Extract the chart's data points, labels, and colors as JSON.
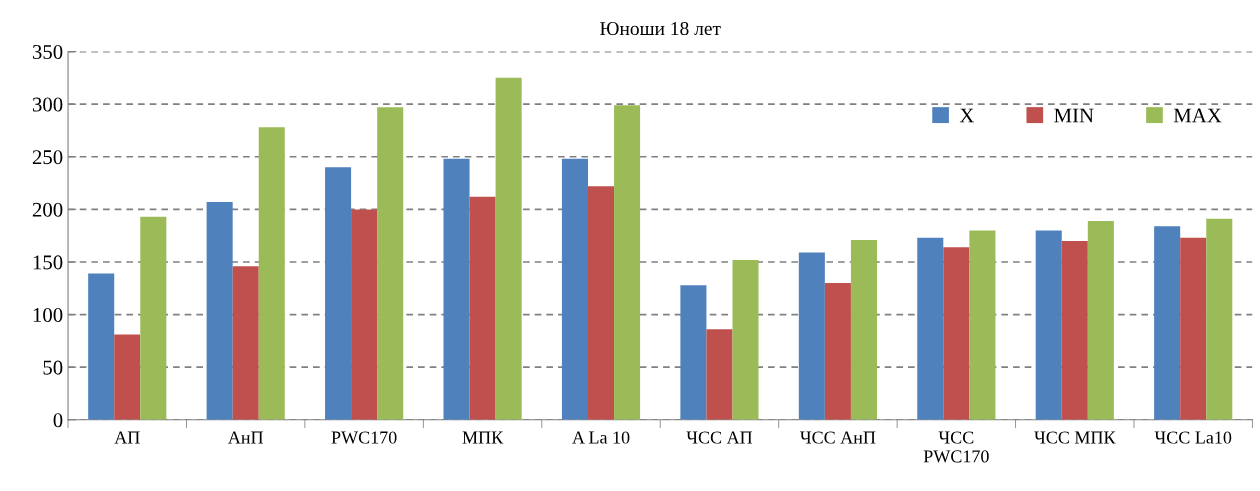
{
  "chart_data": {
    "type": "bar",
    "title": "Юноши 18 лет",
    "categories": [
      "АП",
      "АнП",
      "PWC170",
      "МПК",
      "A La 10",
      "ЧСС АП",
      "ЧСС АнП",
      "ЧСС PWC170",
      "ЧСС МПК",
      "ЧСС La10"
    ],
    "series": [
      {
        "name": "X",
        "color": "#4f81bd",
        "values": [
          139,
          207,
          240,
          248,
          248,
          128,
          159,
          173,
          180,
          184
        ]
      },
      {
        "name": "MIN",
        "color": "#c0504d",
        "values": [
          81,
          146,
          200,
          212,
          222,
          86,
          130,
          164,
          170,
          173
        ]
      },
      {
        "name": "MAX",
        "color": "#9bbb59",
        "values": [
          193,
          278,
          297,
          325,
          299,
          152,
          171,
          180,
          189,
          191
        ]
      }
    ],
    "ylim": [
      0,
      350
    ],
    "yticks": [
      0,
      50,
      100,
      150,
      200,
      250,
      300,
      350
    ],
    "grid": "y",
    "legend": "top right"
  }
}
